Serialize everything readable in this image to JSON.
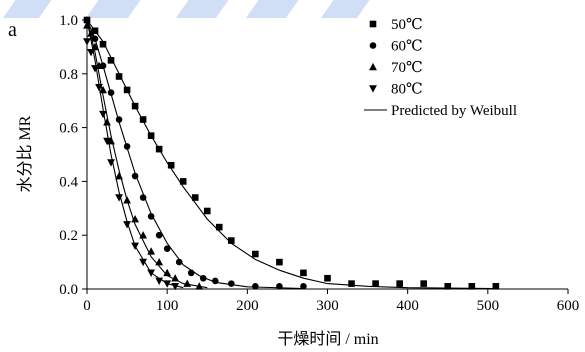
{
  "panel_label": "a",
  "colors": {
    "axis": "#000000",
    "marks": "#000000",
    "watermark": "#a9c4ee"
  },
  "chart_data": {
    "type": "scatter",
    "title": "",
    "xlabel": "干燥时间 / min",
    "ylabel": "水分比 MR",
    "xlim": [
      0,
      600
    ],
    "ylim": [
      0,
      1.0
    ],
    "xticks": [
      "0",
      "100",
      "200",
      "300",
      "400",
      "500",
      "600"
    ],
    "yticks": [
      "0.0",
      "0.2",
      "0.4",
      "0.6",
      "0.8",
      "1.0"
    ],
    "legend_position": "top-right",
    "series": [
      {
        "name": "50℃",
        "marker": "square",
        "x": [
          0,
          10,
          20,
          30,
          40,
          50,
          60,
          70,
          80,
          90,
          105,
          120,
          135,
          150,
          165,
          180,
          210,
          240,
          270,
          300,
          330,
          360,
          390,
          420,
          450,
          480,
          510
        ],
        "y": [
          1.0,
          0.96,
          0.91,
          0.85,
          0.79,
          0.74,
          0.68,
          0.63,
          0.57,
          0.52,
          0.46,
          0.4,
          0.34,
          0.29,
          0.23,
          0.18,
          0.13,
          0.1,
          0.06,
          0.04,
          0.02,
          0.02,
          0.02,
          0.02,
          0.01,
          0.01,
          0.01
        ],
        "fit": [
          [
            0,
            1.0
          ],
          [
            20,
            0.92
          ],
          [
            40,
            0.8
          ],
          [
            60,
            0.68
          ],
          [
            80,
            0.57
          ],
          [
            100,
            0.47
          ],
          [
            120,
            0.38
          ],
          [
            150,
            0.26
          ],
          [
            180,
            0.17
          ],
          [
            210,
            0.11
          ],
          [
            240,
            0.07
          ],
          [
            270,
            0.04
          ],
          [
            300,
            0.02
          ],
          [
            350,
            0.01
          ],
          [
            400,
            0.005
          ],
          [
            510,
            0.002
          ]
        ]
      },
      {
        "name": "60℃",
        "marker": "circle",
        "x": [
          0,
          10,
          20,
          30,
          40,
          50,
          60,
          70,
          80,
          90,
          100,
          115,
          130,
          145,
          160,
          180,
          210,
          240,
          270
        ],
        "y": [
          1.0,
          0.93,
          0.83,
          0.73,
          0.63,
          0.53,
          0.42,
          0.34,
          0.27,
          0.2,
          0.15,
          0.1,
          0.06,
          0.04,
          0.03,
          0.02,
          0.01,
          0.01,
          0.01
        ],
        "fit": [
          [
            0,
            1.0
          ],
          [
            10,
            0.93
          ],
          [
            20,
            0.83
          ],
          [
            40,
            0.62
          ],
          [
            60,
            0.43
          ],
          [
            80,
            0.28
          ],
          [
            100,
            0.17
          ],
          [
            120,
            0.09
          ],
          [
            140,
            0.05
          ],
          [
            160,
            0.025
          ],
          [
            200,
            0.008
          ],
          [
            270,
            0.002
          ]
        ]
      },
      {
        "name": "70℃",
        "marker": "triangle-up",
        "x": [
          0,
          5,
          10,
          15,
          20,
          25,
          30,
          40,
          50,
          60,
          70,
          80,
          90,
          100,
          110,
          125,
          140
        ],
        "y": [
          0.98,
          0.95,
          0.9,
          0.83,
          0.74,
          0.62,
          0.55,
          0.42,
          0.33,
          0.26,
          0.2,
          0.14,
          0.1,
          0.06,
          0.04,
          0.02,
          0.01
        ],
        "fit": [
          [
            0,
            1.0
          ],
          [
            10,
            0.88
          ],
          [
            20,
            0.72
          ],
          [
            30,
            0.57
          ],
          [
            40,
            0.44
          ],
          [
            50,
            0.33
          ],
          [
            60,
            0.24
          ],
          [
            80,
            0.12
          ],
          [
            100,
            0.05
          ],
          [
            120,
            0.02
          ],
          [
            150,
            0.005
          ]
        ]
      },
      {
        "name": "80℃",
        "marker": "triangle-down",
        "x": [
          0,
          5,
          10,
          15,
          20,
          25,
          30,
          40,
          50,
          60,
          70,
          80,
          90,
          100,
          110
        ],
        "y": [
          0.92,
          0.88,
          0.82,
          0.75,
          0.65,
          0.55,
          0.47,
          0.34,
          0.24,
          0.16,
          0.1,
          0.06,
          0.03,
          0.02,
          0.01
        ],
        "fit": [
          [
            0,
            1.0
          ],
          [
            10,
            0.85
          ],
          [
            20,
            0.67
          ],
          [
            30,
            0.5
          ],
          [
            40,
            0.36
          ],
          [
            50,
            0.25
          ],
          [
            60,
            0.16
          ],
          [
            80,
            0.06
          ],
          [
            100,
            0.02
          ],
          [
            120,
            0.005
          ]
        ]
      }
    ],
    "fit_legend_label": "Predicted by Weibull"
  }
}
